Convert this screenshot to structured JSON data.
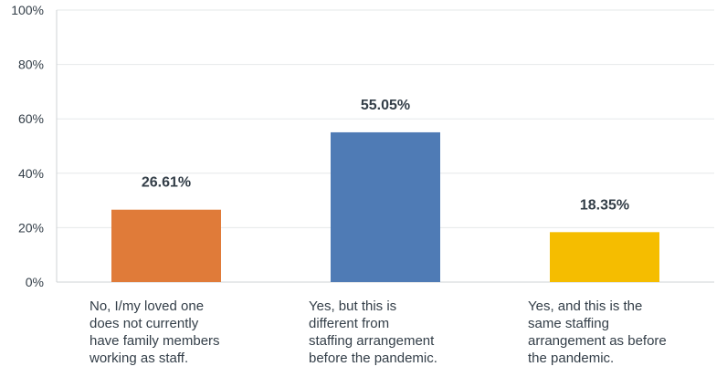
{
  "chart_data": {
    "type": "bar",
    "categories": [
      "No, I/my loved one does not currently have family members working as staff.",
      "Yes, but this is different from staffing arrangement before the pandemic.",
      "Yes, and this is the same staffing arrangement as before the pandemic."
    ],
    "category_lines": [
      [
        "No, I/my loved one",
        "does not currently",
        "have family members",
        "working as staff."
      ],
      [
        "Yes, but this is",
        "different from",
        "staffing arrangement",
        "before the pandemic."
      ],
      [
        "Yes, and this is the",
        "same staffing",
        "arrangement as before",
        "the pandemic."
      ]
    ],
    "values": [
      26.61,
      55.05,
      18.35
    ],
    "value_labels": [
      "26.61%",
      "55.05%",
      "18.35%"
    ],
    "bar_colors": [
      "#e07b39",
      "#4f7bb5",
      "#f5bd00"
    ],
    "ylim": [
      0,
      100
    ],
    "yticks": [
      0,
      20,
      40,
      60,
      80,
      100
    ],
    "ytick_labels": [
      "0%",
      "20%",
      "40%",
      "60%",
      "80%",
      "100%"
    ],
    "grid": true,
    "title": "",
    "xlabel": "",
    "ylabel": ""
  }
}
